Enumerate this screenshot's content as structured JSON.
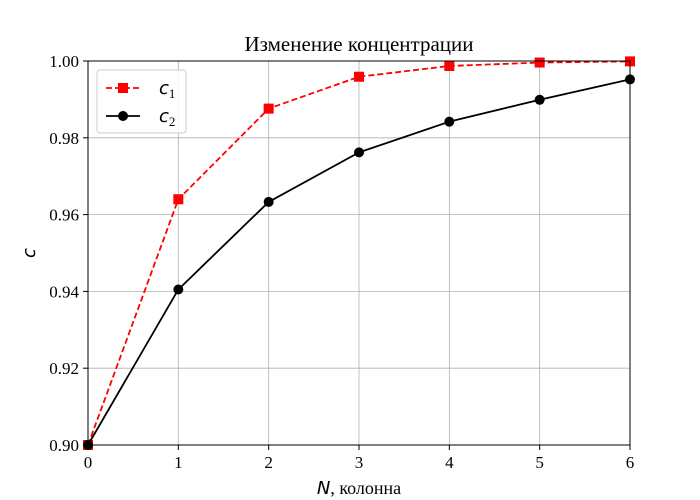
{
  "chart_data": {
    "type": "line",
    "title": "Изменение концентрации",
    "xlabel": {
      "symbol": "N",
      "rest": ", колонна"
    },
    "ylabel": "c",
    "xlim": [
      0,
      6
    ],
    "ylim": [
      0.9,
      1.0
    ],
    "x_ticks": [
      "0",
      "1",
      "2",
      "3",
      "4",
      "5",
      "6"
    ],
    "y_ticks": [
      "0.90",
      "0.92",
      "0.94",
      "0.96",
      "0.98",
      "1.00"
    ],
    "grid": true,
    "legend_position": "top-left",
    "x": [
      0,
      1,
      2,
      3,
      4,
      5,
      6
    ],
    "series": [
      {
        "name": "c",
        "subscript": "1",
        "color": "#ff0000",
        "linestyle": "dashed",
        "marker": "square",
        "values": [
          0.9,
          0.964,
          0.9876,
          0.9959,
          0.9987,
          0.9996,
          0.9999
        ]
      },
      {
        "name": "c",
        "subscript": "2",
        "color": "#000000",
        "linestyle": "solid",
        "marker": "circle",
        "values": [
          0.9,
          0.9405,
          0.9633,
          0.9762,
          0.9842,
          0.9899,
          0.9952
        ]
      }
    ]
  }
}
